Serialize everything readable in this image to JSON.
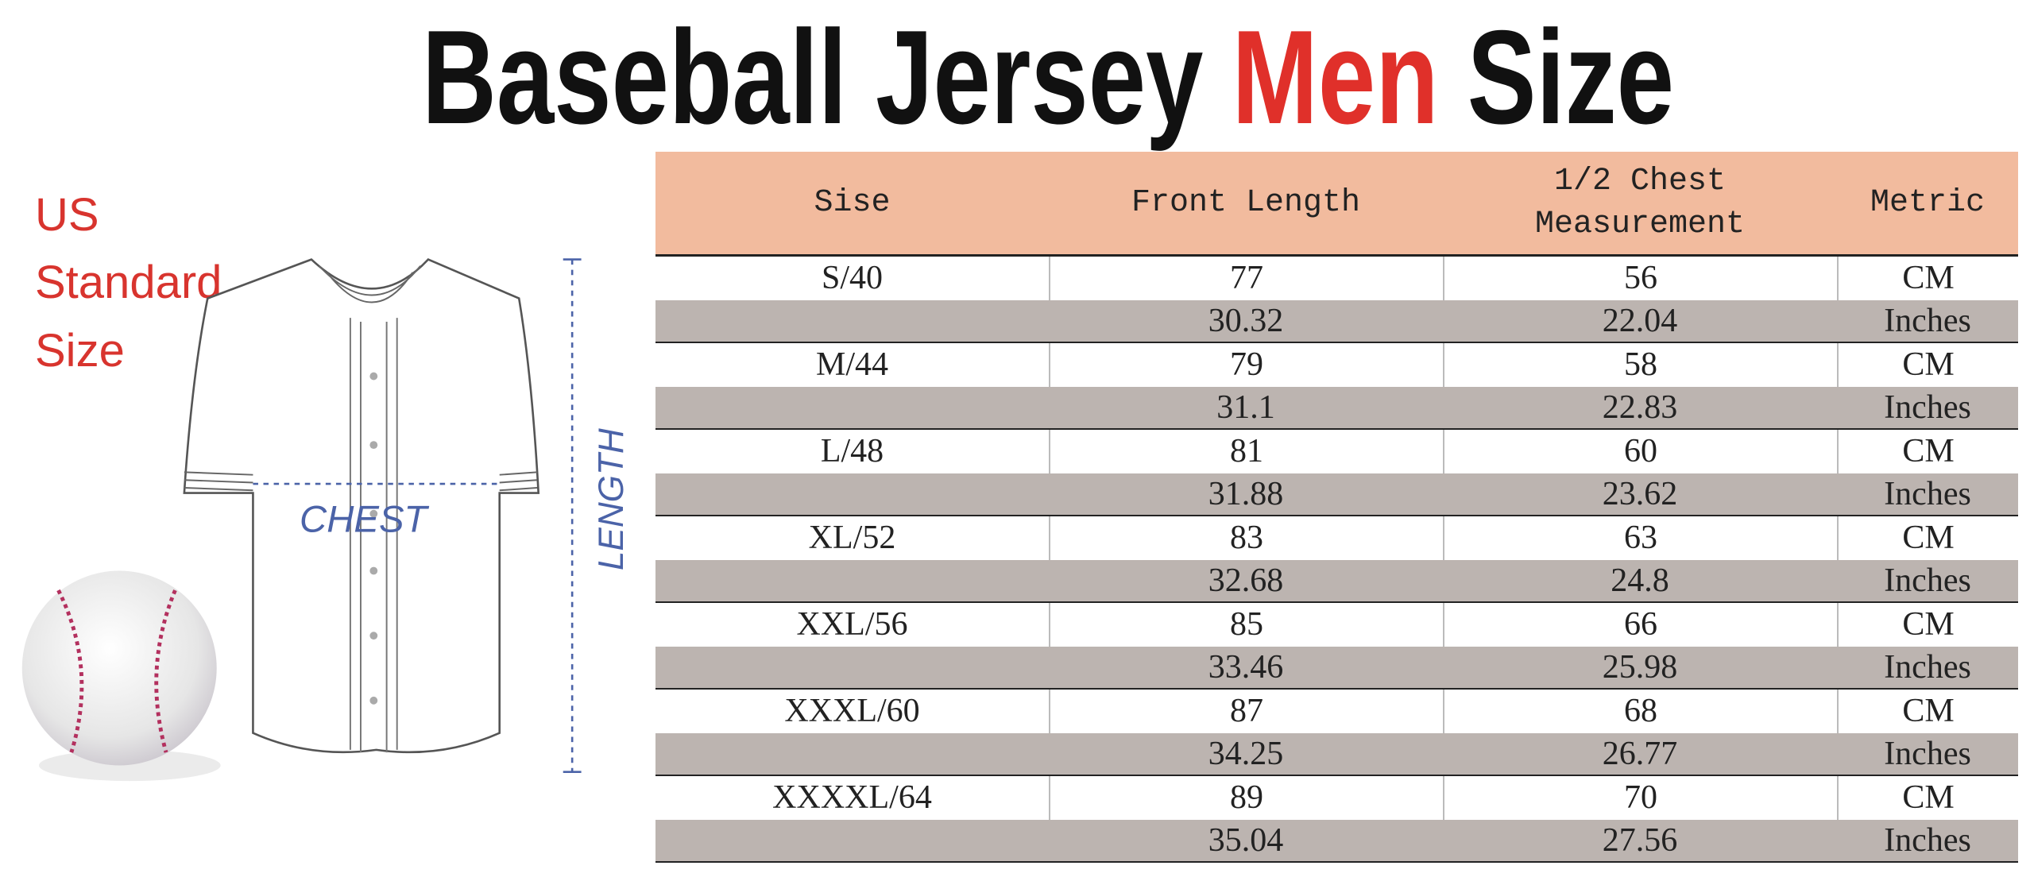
{
  "header": {
    "title": "Baseball Jersey ",
    "title_highlight": "Men",
    "title_end": " Size"
  },
  "side_label": [
    "US",
    "Standard",
    "Size"
  ],
  "diagram": {
    "chest": "CHEST",
    "length": "LENGTH"
  },
  "table": {
    "columns": [
      "Sise",
      "Front Length",
      "1/2 Chest Measurement",
      "Metric"
    ],
    "rows": [
      {
        "size": "S/40",
        "cm": {
          "front_length": 77,
          "half_chest": 56,
          "metric": "CM"
        },
        "inches": {
          "front_length": 30.32,
          "half_chest": 22.04,
          "metric": "Inches"
        }
      },
      {
        "size": "M/44",
        "cm": {
          "front_length": 79,
          "half_chest": 58,
          "metric": "CM"
        },
        "inches": {
          "front_length": 31.1,
          "half_chest": 22.83,
          "metric": "Inches"
        }
      },
      {
        "size": "L/48",
        "cm": {
          "front_length": 81,
          "half_chest": 60,
          "metric": "CM"
        },
        "inches": {
          "front_length": 31.88,
          "half_chest": 23.62,
          "metric": "Inches"
        }
      },
      {
        "size": "XL/52",
        "cm": {
          "front_length": 83,
          "half_chest": 63,
          "metric": "CM"
        },
        "inches": {
          "front_length": 32.68,
          "half_chest": 24.8,
          "metric": "Inches"
        }
      },
      {
        "size": "XXL/56",
        "cm": {
          "front_length": 85,
          "half_chest": 66,
          "metric": "CM"
        },
        "inches": {
          "front_length": 33.46,
          "half_chest": 25.98,
          "metric": "Inches"
        }
      },
      {
        "size": "XXXL/60",
        "cm": {
          "front_length": 87,
          "half_chest": 68,
          "metric": "CM"
        },
        "inches": {
          "front_length": 34.25,
          "half_chest": 26.77,
          "metric": "Inches"
        }
      },
      {
        "size": "XXXXL/64",
        "cm": {
          "front_length": 89,
          "half_chest": 70,
          "metric": "CM"
        },
        "inches": {
          "front_length": 35.04,
          "half_chest": 27.56,
          "metric": "Inches"
        }
      }
    ]
  }
}
